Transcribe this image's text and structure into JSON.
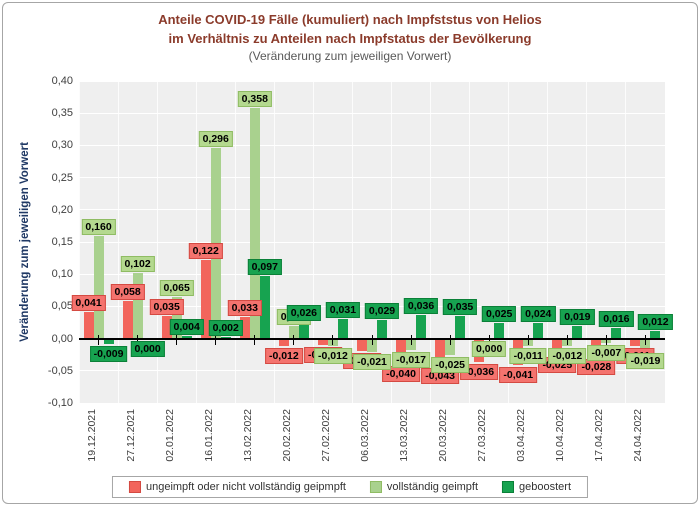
{
  "chart_data": {
    "type": "bar",
    "title_line1": "Anteile COVID-19 Fälle (kumuliert) nach Impfststus von Helios",
    "title_line2": "im Verhältnis zu Anteilen nach Impfstatus der Bevölkerung",
    "title_line3": "(Veränderung zum jeweiligen Vorwert)",
    "ylabel": "Veränderung zum jeweiligen Vorwert",
    "ylim": [
      -0.1,
      0.4
    ],
    "ytick_step": 0.05,
    "y_tick_labels": [
      "0,40",
      "0,35",
      "0,30",
      "0,25",
      "0,20",
      "0,15",
      "0,10",
      "0,05",
      "0,00",
      "-0,05",
      "-0,10"
    ],
    "grid": true,
    "legend_position": "bottom",
    "number_format": "german comma, 3 decimals",
    "categories": [
      "19.12.2021",
      "27.12.2021",
      "02.01.2022",
      "16.01.2022",
      "13.02.2022",
      "20.02.2022",
      "27.02.2022",
      "06.03.2022",
      "13.03.2022",
      "20.03.2022",
      "27.03.2022",
      "03.04.2022",
      "10.04.2022",
      "17.04.2022",
      "24.04.2022"
    ],
    "series": [
      {
        "name": "ungeimpft oder nicht vollständig geipmpft",
        "color": "#F2655C",
        "label_bg": "#F4736E",
        "label_border": "#D44A42",
        "values": [
          0.041,
          0.058,
          0.035,
          0.122,
          0.033,
          -0.012,
          -0.01,
          -0.02,
          -0.04,
          -0.043,
          -0.036,
          -0.041,
          -0.025,
          -0.028,
          -0.011
        ]
      },
      {
        "name": "vollständig geimpft",
        "color": "#A9D18E",
        "label_bg": "#B4D98F",
        "label_border": "#8FBC63",
        "values": [
          0.16,
          0.102,
          0.065,
          0.296,
          0.358,
          0.02,
          -0.012,
          -0.021,
          -0.017,
          -0.025,
          0.0,
          -0.011,
          -0.012,
          -0.007,
          -0.019
        ]
      },
      {
        "name": "geboostert",
        "color": "#17A350",
        "label_bg": "#17A350",
        "label_border": "#0B8038",
        "values": [
          -0.009,
          0.0,
          0.004,
          0.002,
          0.097,
          0.026,
          0.031,
          0.029,
          0.036,
          0.035,
          0.025,
          0.024,
          0.019,
          0.016,
          0.012
        ]
      }
    ]
  },
  "colors": {
    "title": "#8B3B2B",
    "subtitle": "#595959",
    "axis_text": "#404040",
    "y_axis_title": "#1F3864",
    "plot_background": "#EFEFEF",
    "gridline": "#FFFFFF",
    "axis_line": "#000000",
    "chart_border": "#A6A6A6"
  }
}
